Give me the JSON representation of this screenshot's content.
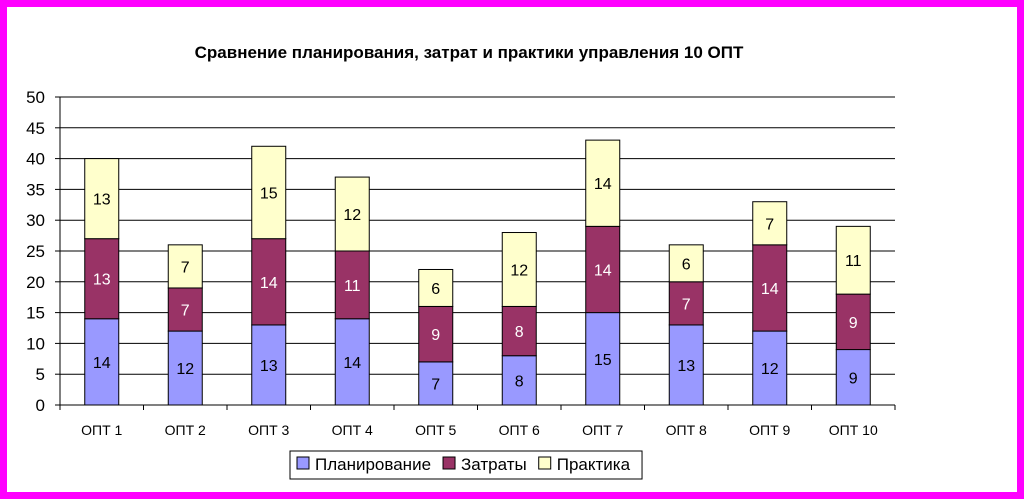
{
  "chart_data": {
    "type": "bar",
    "stacked": true,
    "title": "Сравнение планирования, затрат и практики управления 10 ОПТ",
    "categories": [
      "ОПТ 1",
      "ОПТ 2",
      "ОПТ 3",
      "ОПТ 4",
      "ОПТ 5",
      "ОПТ 6",
      "ОПТ 7",
      "ОПТ 8",
      "ОПТ 9",
      "ОПТ 10"
    ],
    "series": [
      {
        "name": "Планирование",
        "color": "#9999ff",
        "label_color": "#000000",
        "values": [
          14,
          12,
          13,
          14,
          7,
          8,
          15,
          13,
          12,
          9
        ]
      },
      {
        "name": "Затраты",
        "color": "#993366",
        "label_color": "#ffffff",
        "values": [
          13,
          7,
          14,
          11,
          9,
          8,
          14,
          7,
          14,
          9
        ]
      },
      {
        "name": "Практика",
        "color": "#ffffcc",
        "label_color": "#000000",
        "values": [
          13,
          7,
          15,
          12,
          6,
          12,
          14,
          6,
          7,
          11
        ]
      }
    ],
    "ylim": [
      0,
      50
    ],
    "yticks": [
      "0",
      "5",
      "10",
      "15",
      "20",
      "25",
      "30",
      "35",
      "40",
      "45",
      "50"
    ],
    "grid": true,
    "legend_position": "bottom",
    "frame_color": "#ff00ff"
  }
}
